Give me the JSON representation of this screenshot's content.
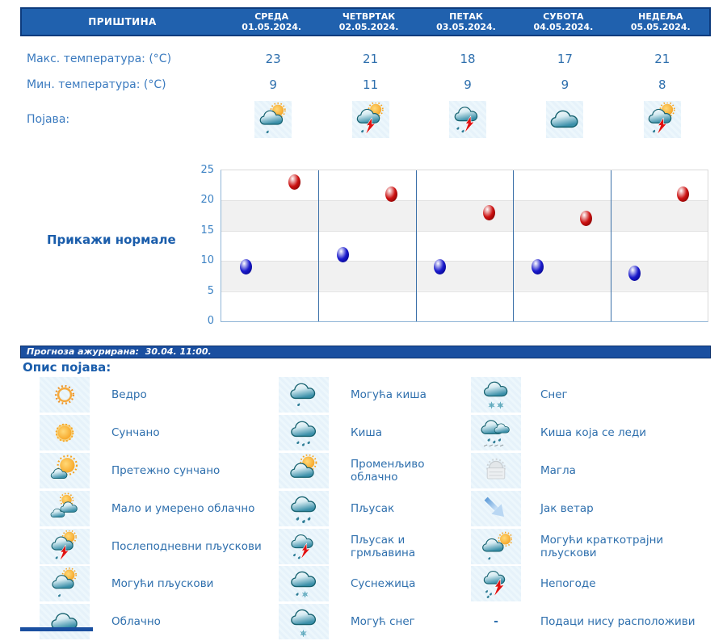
{
  "location_header": {
    "city": "ПРИШТИНА",
    "days": [
      {
        "name": "СРЕДА",
        "date": "01.05.2024."
      },
      {
        "name": "ЧЕТВРТАК",
        "date": "02.05.2024."
      },
      {
        "name": "ПЕТАК",
        "date": "03.05.2024."
      },
      {
        "name": "СУБОТА",
        "date": "04.05.2024."
      },
      {
        "name": "НЕДЕЉА",
        "date": "05.05.2024."
      }
    ]
  },
  "table": {
    "max_label": "Макс. температура: (°C)",
    "min_label": "Мин. температура: (°C)",
    "phenomena_label": "Појава:",
    "max_values": [
      "23",
      "21",
      "18",
      "17",
      "21"
    ],
    "min_values": [
      "9",
      "11",
      "9",
      "9",
      "8"
    ],
    "phenomena": [
      {
        "icon": "possible-showers"
      },
      {
        "icon": "afternoon-showers"
      },
      {
        "icon": "rain-thunder"
      },
      {
        "icon": "cloudy"
      },
      {
        "icon": "afternoon-showers"
      }
    ]
  },
  "chart": {
    "normals_button": "Прикажи нормале"
  },
  "chart_data": {
    "type": "scatter",
    "categories": [
      "01.05.",
      "02.05.",
      "03.05.",
      "04.05.",
      "05.05."
    ],
    "series": [
      {
        "name": "Мин. температура",
        "marker": "blue",
        "color": "#1a1acc",
        "color_dark": "#00007a",
        "values": [
          9,
          11,
          9,
          9,
          8
        ]
      },
      {
        "name": "Макс. температура",
        "marker": "red",
        "color": "#cc1111",
        "color_dark": "#6e0000",
        "values": [
          23,
          21,
          18,
          17,
          21
        ]
      }
    ],
    "ylim": [
      0,
      25
    ],
    "yticks": [
      0,
      5,
      10,
      15,
      20,
      25
    ],
    "grid": "horizontal bands (gray between 5–10 and 15–20), blue vertical day separators",
    "legend_position": "none"
  },
  "update_bar": {
    "label": "Прогноза ажурирана:",
    "value": "30.04. 11:00."
  },
  "legend": {
    "title": "Опис појава:",
    "items": [
      {
        "icon": "clear",
        "label": "Ведро"
      },
      {
        "icon": "possible-rain",
        "label": "Могућа киша"
      },
      {
        "icon": "snow",
        "label": "Снег"
      },
      {
        "icon": "sunny",
        "label": "Сунчано"
      },
      {
        "icon": "rain",
        "label": "Киша"
      },
      {
        "icon": "freezing-rain",
        "label": "Киша која се леди"
      },
      {
        "icon": "mostly-sunny",
        "label": "Претежно сунчано"
      },
      {
        "icon": "variable-cloudy",
        "label": "Променљиво облачно"
      },
      {
        "icon": "fog",
        "label": "Магла"
      },
      {
        "icon": "partly-cloudy",
        "label": "Мало и умерено облачно"
      },
      {
        "icon": "showers",
        "label": "Пљусак"
      },
      {
        "icon": "strong-wind",
        "label": "Јак ветар"
      },
      {
        "icon": "afternoon-showers",
        "label": "Послеподневни пљускови"
      },
      {
        "icon": "rain-thunder",
        "label": "Пљусак и грмљавина"
      },
      {
        "icon": "possible-brief-showers",
        "label": "Могући краткотрајни пљускови"
      },
      {
        "icon": "possible-showers",
        "label": "Могући пљускови"
      },
      {
        "icon": "sleet",
        "label": "Суснежица"
      },
      {
        "icon": "storms",
        "label": "Непогоде"
      },
      {
        "icon": "cloudy",
        "label": "Облачно"
      },
      {
        "icon": "possible-snow",
        "label": "Могућ снег"
      },
      {
        "icon": "no-data",
        "label": "Подаци нису расположиви",
        "dash": "-"
      }
    ]
  }
}
